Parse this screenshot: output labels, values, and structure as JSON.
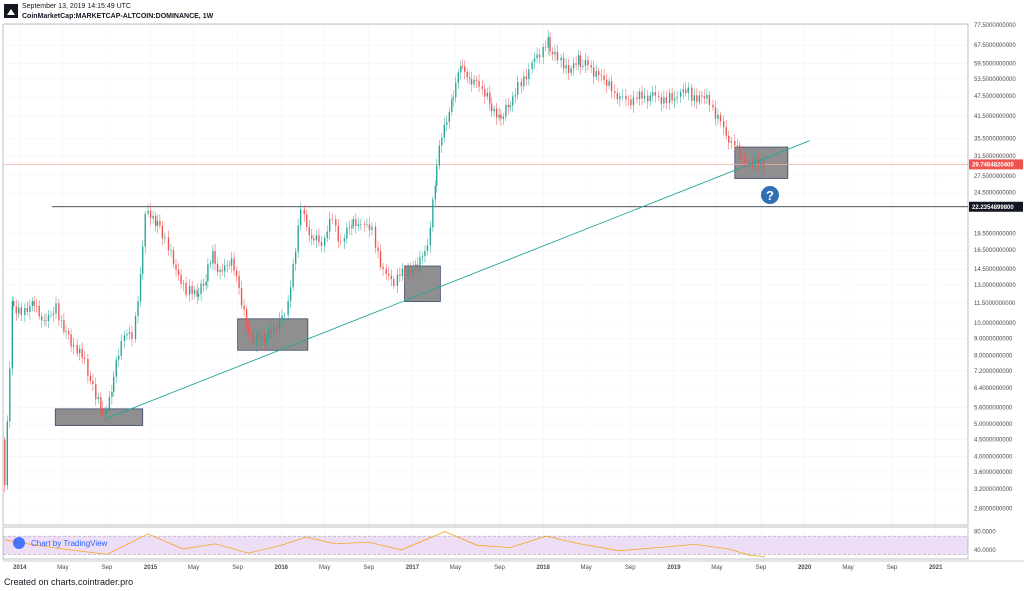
{
  "header": {
    "date": "September 13, 2019 14:15:49 UTC",
    "symbol": "CoinMarketCap:MARKETCAP-ALTCOIN:DOMINANCE, 1W"
  },
  "footer": {
    "created": "Created on charts.cointrader.pro"
  },
  "watermark": "Chart by TradingView",
  "annotation": {
    "question_mark": "?"
  },
  "colors": {
    "up": "#26a69a",
    "down": "#ef5350",
    "trendline": "#26a69a",
    "rsi": "#f5a623",
    "rsi_band": "#ead6f3",
    "price_label": "#ef5350",
    "level_label": "#131722"
  },
  "chart_data": [
    {
      "type": "candlestick",
      "title": "",
      "xlabel": "",
      "ylabel": "",
      "y_scale": "log",
      "ylim": [
        2.5,
        78
      ],
      "x_range": [
        "2013-11-15",
        "2021-04-01"
      ],
      "grid": true,
      "y_ticks": [
        "77.5000000000",
        "67.5000000000",
        "59.5000000000",
        "53.5000000000",
        "47.5000000000",
        "41.5000000000",
        "35.5000000000",
        "31.5000000000",
        "27.5000000000",
        "24.5000000000",
        "18.5000000000",
        "16.5000000000",
        "14.5000000000",
        "13.0000000000",
        "11.5000000000",
        "10.0000000000",
        "9.0000000000",
        "8.0000000000",
        "7.2000000000",
        "6.4000000000",
        "5.6000000000",
        "5.0000000000",
        "4.5000000000",
        "4.0000000000",
        "3.6000000000",
        "3.2000000000",
        "2.8000000000"
      ],
      "x_ticks": [
        {
          "label": "2014",
          "date": "2014-01-01"
        },
        {
          "label": "May",
          "date": "2014-05-01"
        },
        {
          "label": "Sep",
          "date": "2014-09-01"
        },
        {
          "label": "2015",
          "date": "2015-01-01"
        },
        {
          "label": "May",
          "date": "2015-05-01"
        },
        {
          "label": "Sep",
          "date": "2015-09-01"
        },
        {
          "label": "2016",
          "date": "2016-01-01"
        },
        {
          "label": "May",
          "date": "2016-05-01"
        },
        {
          "label": "Sep",
          "date": "2016-09-01"
        },
        {
          "label": "2017",
          "date": "2017-01-01"
        },
        {
          "label": "May",
          "date": "2017-05-01"
        },
        {
          "label": "Sep",
          "date": "2017-09-01"
        },
        {
          "label": "2018",
          "date": "2018-01-01"
        },
        {
          "label": "May",
          "date": "2018-05-01"
        },
        {
          "label": "Sep",
          "date": "2018-09-01"
        },
        {
          "label": "2019",
          "date": "2019-01-01"
        },
        {
          "label": "May",
          "date": "2019-05-01"
        },
        {
          "label": "Sep",
          "date": "2019-09-01"
        },
        {
          "label": "2020",
          "date": "2020-01-01"
        },
        {
          "label": "May",
          "date": "2020-05-01"
        },
        {
          "label": "Sep",
          "date": "2020-09-01"
        },
        {
          "label": "2021",
          "date": "2021-01-01"
        }
      ],
      "series": [
        {
          "path": [
            [
              "2013-11-20",
              4.5
            ],
            [
              "2013-11-27",
              3.4
            ],
            [
              "2013-12-15",
              11.5
            ],
            [
              "2014-01-15",
              10.5
            ],
            [
              "2014-02-10",
              11.8
            ],
            [
              "2014-03-15",
              10.2
            ],
            [
              "2014-04-20",
              11.3
            ],
            [
              "2014-05-10",
              9.6
            ],
            [
              "2014-06-10",
              8.6
            ],
            [
              "2014-07-10",
              7.6
            ],
            [
              "2014-08-01",
              6.4
            ],
            [
              "2014-08-20",
              5.6
            ],
            [
              "2014-09-01",
              5.4
            ],
            [
              "2014-09-20",
              6.4
            ],
            [
              "2014-10-20",
              9.0
            ],
            [
              "2014-11-20",
              9.3
            ],
            [
              "2014-12-10",
              13.5
            ],
            [
              "2014-12-25",
              21.5
            ],
            [
              "2015-01-20",
              20.5
            ],
            [
              "2015-02-20",
              18.0
            ],
            [
              "2015-03-20",
              14.0
            ],
            [
              "2015-04-20",
              12.8
            ],
            [
              "2015-05-15",
              11.8
            ],
            [
              "2015-06-10",
              13.5
            ],
            [
              "2015-06-30",
              16.0
            ],
            [
              "2015-07-20",
              14.0
            ],
            [
              "2015-08-15",
              15.5
            ],
            [
              "2015-09-05",
              14.0
            ],
            [
              "2015-10-01",
              10.0
            ],
            [
              "2015-10-25",
              9.0
            ],
            [
              "2015-11-20",
              8.8
            ],
            [
              "2015-12-20",
              9.5
            ],
            [
              "2016-01-20",
              10.5
            ],
            [
              "2016-02-10",
              15.0
            ],
            [
              "2016-03-05",
              21.5
            ],
            [
              "2016-04-01",
              18.0
            ],
            [
              "2016-05-01",
              17.0
            ],
            [
              "2016-06-01",
              20.5
            ],
            [
              "2016-06-25",
              17.5
            ],
            [
              "2016-07-20",
              19.5
            ],
            [
              "2016-08-20",
              20.0
            ],
            [
              "2016-09-20",
              18.5
            ],
            [
              "2016-10-20",
              14.5
            ],
            [
              "2016-11-20",
              13.5
            ],
            [
              "2016-12-20",
              14.0
            ],
            [
              "2017-01-15",
              14.5
            ],
            [
              "2017-02-20",
              16.5
            ],
            [
              "2017-03-10",
              26.0
            ],
            [
              "2017-03-31",
              37.0
            ],
            [
              "2017-04-25",
              46.0
            ],
            [
              "2017-05-20",
              58.0
            ],
            [
              "2017-06-15",
              52.0
            ],
            [
              "2017-07-15",
              51.0
            ],
            [
              "2017-08-10",
              45.0
            ],
            [
              "2017-09-05",
              40.0
            ],
            [
              "2017-10-01",
              44.0
            ],
            [
              "2017-11-01",
              50.0
            ],
            [
              "2017-12-01",
              58.0
            ],
            [
              "2018-01-01",
              65.0
            ],
            [
              "2018-01-20",
              68.0
            ],
            [
              "2018-02-20",
              61.0
            ],
            [
              "2018-03-20",
              58.0
            ],
            [
              "2018-04-15",
              60.0
            ],
            [
              "2018-05-15",
              59.0
            ],
            [
              "2018-06-20",
              54.0
            ],
            [
              "2018-07-20",
              49.0
            ],
            [
              "2018-08-20",
              46.0
            ],
            [
              "2018-09-20",
              47.0
            ],
            [
              "2018-10-20",
              46.5
            ],
            [
              "2018-11-20",
              47.5
            ],
            [
              "2018-12-20",
              47.0
            ],
            [
              "2019-01-20",
              48.0
            ],
            [
              "2019-02-20",
              48.5
            ],
            [
              "2019-03-20",
              47.0
            ],
            [
              "2019-04-20",
              45.5
            ],
            [
              "2019-05-20",
              40.0
            ],
            [
              "2019-06-20",
              34.5
            ],
            [
              "2019-07-10",
              31.5
            ],
            [
              "2019-08-01",
              30.2
            ],
            [
              "2019-08-25",
              29.8
            ],
            [
              "2019-09-13",
              29.74648204
            ]
          ]
        },
        {
          "name": "",
          "type": "trendline",
          "from": [
            "2014-09-01",
            5.2
          ],
          "to": [
            "2020-01-15",
            35.0
          ]
        }
      ],
      "horizontal_levels": [
        {
          "value": 29.74648204,
          "label": "29.7464820400",
          "style": "price"
        },
        {
          "value": 22.23548998,
          "label": "22.2354899800",
          "style": "support",
          "from": "2014-04-01"
        }
      ],
      "highlight_boxes": [
        {
          "x": [
            "2014-04-10",
            "2014-12-10"
          ],
          "y": [
            4.95,
            5.55
          ]
        },
        {
          "x": [
            "2015-09-01",
            "2016-03-15"
          ],
          "y": [
            8.3,
            10.3
          ]
        },
        {
          "x": [
            "2016-12-10",
            "2017-03-20"
          ],
          "y": [
            11.6,
            14.8
          ]
        },
        {
          "x": [
            "2019-06-20",
            "2019-11-15"
          ],
          "y": [
            27.0,
            33.5
          ]
        }
      ]
    },
    {
      "type": "line",
      "title": "",
      "xlabel": "",
      "ylabel": "",
      "ylim": [
        20,
        90
      ],
      "y_ticks": [
        "80.0000",
        "40.0000"
      ],
      "band": [
        30,
        70
      ],
      "series": [
        {
          "name": "",
          "points": [
            [
              "2013-11-20",
              62
            ],
            [
              "2014-02-01",
              52
            ],
            [
              "2014-05-01",
              42
            ],
            [
              "2014-09-01",
              30
            ],
            [
              "2014-12-25",
              75
            ],
            [
              "2015-04-01",
              42
            ],
            [
              "2015-07-01",
              53
            ],
            [
              "2015-10-01",
              33
            ],
            [
              "2016-01-01",
              50
            ],
            [
              "2016-03-10",
              68
            ],
            [
              "2016-06-01",
              53
            ],
            [
              "2016-09-01",
              57
            ],
            [
              "2016-12-01",
              40
            ],
            [
              "2017-04-01",
              80
            ],
            [
              "2017-07-01",
              50
            ],
            [
              "2017-10-01",
              45
            ],
            [
              "2018-01-10",
              70
            ],
            [
              "2018-04-01",
              55
            ],
            [
              "2018-08-01",
              38
            ],
            [
              "2018-12-01",
              46
            ],
            [
              "2019-03-01",
              52
            ],
            [
              "2019-06-01",
              42
            ],
            [
              "2019-08-01",
              28
            ],
            [
              "2019-09-13",
              25
            ]
          ]
        }
      ]
    }
  ]
}
